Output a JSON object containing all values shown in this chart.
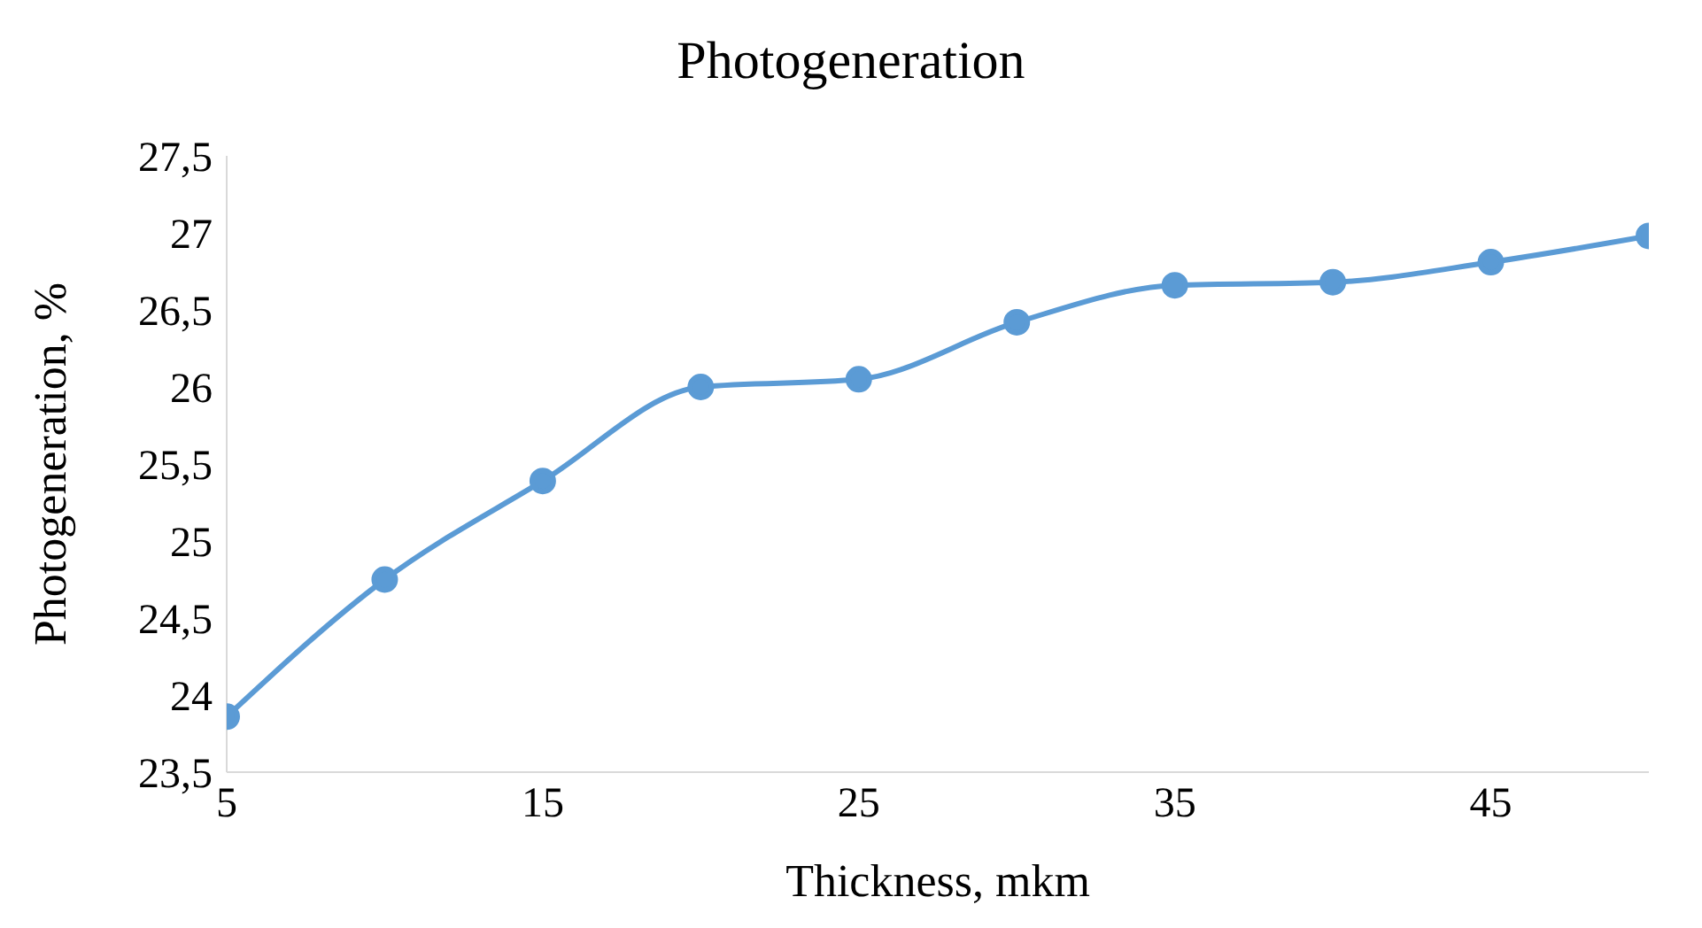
{
  "chart_data": {
    "type": "line",
    "title": "Photogeneration",
    "xlabel": "Thickness, mkm",
    "ylabel": "Photogeneration, %",
    "x": [
      5,
      10,
      15,
      20,
      25,
      30,
      35,
      40,
      45,
      50
    ],
    "series": [
      {
        "color": "#5b9bd5",
        "values": [
          23.86,
          24.75,
          25.39,
          26.0,
          26.05,
          26.42,
          26.66,
          26.68,
          26.81,
          26.98
        ]
      }
    ],
    "xlim": [
      5,
      50
    ],
    "xticks": [
      5,
      15,
      25,
      35,
      45
    ],
    "ylim": [
      23.5,
      27.5
    ],
    "yticks": [
      {
        "value": 23.5,
        "label": "23,5"
      },
      24,
      {
        "value": 24.5,
        "label": "24,5"
      },
      25,
      {
        "value": 25.5,
        "label": "25,5"
      },
      26,
      {
        "value": 26.5,
        "label": "26,5"
      },
      27,
      {
        "value": 27.5,
        "label": "27,5"
      }
    ],
    "grid": false,
    "legend": false,
    "marker": "circle",
    "line_style": "solid"
  }
}
